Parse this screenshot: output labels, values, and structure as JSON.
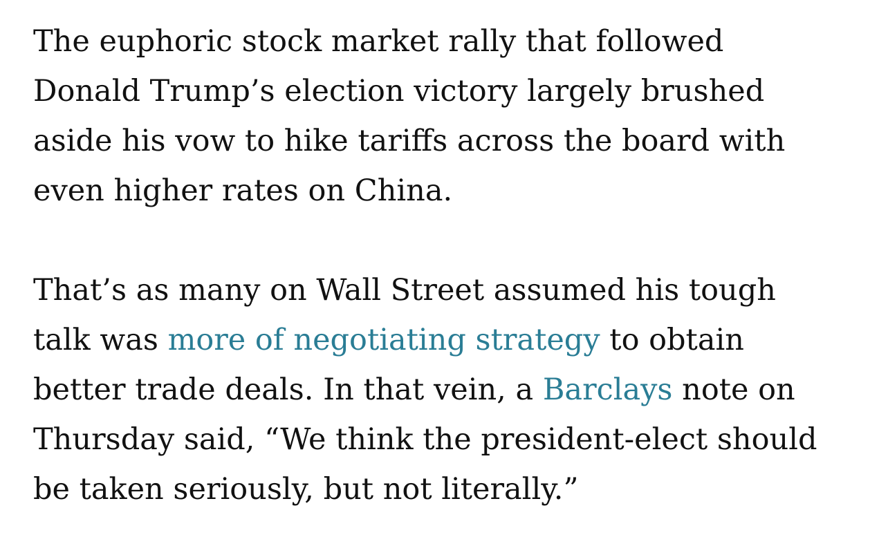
{
  "article": {
    "paragraph1": {
      "lines": [
        "The euphoric stock market rally that followed",
        "Donald Trump’s election victory largely brushed",
        "aside his vow to hike tariffs across the board with",
        "even higher rates on China."
      ]
    },
    "paragraph2": {
      "line1": "That’s as many on Wall Street assumed his tough",
      "line2_before": "talk was ",
      "line2_link": "more of negotiating strategy",
      "line2_after": " to obtain",
      "line3_before": "better trade deals. In that vein, a ",
      "line3_link": "Barclays",
      "line3_after": " note on",
      "line4": "Thursday said, “We think the president-elect should",
      "line5": "be taken seriously, but not literally.”"
    },
    "link_color": "#2a7d95",
    "text_color": "#111111"
  }
}
